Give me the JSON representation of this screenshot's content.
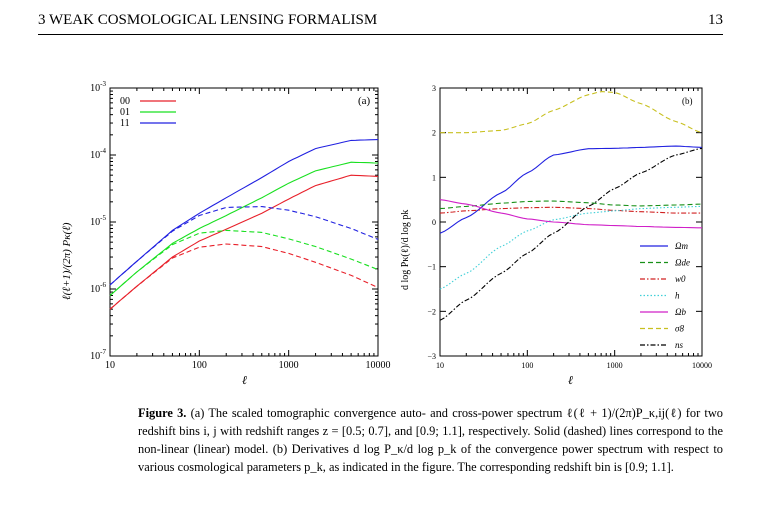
{
  "header": {
    "section": "3 WEAK COSMOLOGICAL LENSING FORMALISM",
    "page": "13"
  },
  "caption": {
    "label": "Figure 3.",
    "text": "(a) The scaled tomographic convergence auto- and cross-power spectrum ℓ(ℓ + 1)/(2π)P_κ,ij(ℓ) for two redshift bins i, j with redshift ranges z = [0.5; 0.7], and [0.9; 1.1], respectively. Solid (dashed) lines correspond to the non-linear (linear) model. (b) Derivatives d log P_κ/d log p_k of the convergence power spectrum with respect to various cosmological parameters p_k, as indicated in the figure. The corresponding redshift bin is [0.9; 1.1]."
  },
  "colors": {
    "red": "#e8202a",
    "green": "#19e020",
    "blue": "#2020e0",
    "magenta": "#d020c8",
    "cyan": "#40d0d8",
    "olive": "#c8c020",
    "darkgreen": "#189018",
    "darkred": "#d02020"
  },
  "chart_data": [
    {
      "type": "line",
      "panel_label": "(a)",
      "xlabel": "ℓ",
      "ylabel": "ℓ(ℓ+1)/(2π) Pκ(ℓ)",
      "xscale": "log",
      "yscale": "log",
      "xlim": [
        10,
        10000
      ],
      "ylim": [
        1e-07,
        0.001
      ],
      "xticklabels": [
        "10",
        "100",
        "1000",
        "10000"
      ],
      "yticklabels": [
        "10-7",
        "10-6",
        "10-5",
        "10-4",
        "10-3"
      ],
      "legend": {
        "position": "top-left",
        "entries": [
          "00",
          "01",
          "11"
        ]
      },
      "series": [
        {
          "name": "11",
          "model": "non-linear",
          "style": "solid",
          "color": "#2020e0",
          "x": [
            10,
            20,
            50,
            100,
            200,
            500,
            1000,
            2000,
            5000,
            10000
          ],
          "y": [
            1.15e-06,
            2.6e-06,
            7.5e-06,
            1.35e-05,
            2.3e-05,
            4.6e-05,
            8e-05,
            0.000125,
            0.000165,
            0.00017
          ]
        },
        {
          "name": "01",
          "model": "non-linear",
          "style": "solid",
          "color": "#19e020",
          "x": [
            10,
            20,
            50,
            100,
            200,
            500,
            1000,
            2000,
            5000,
            10000
          ],
          "y": [
            8e-07,
            1.8e-06,
            4.8e-06,
            8e-06,
            1.25e-05,
            2.3e-05,
            3.8e-05,
            5.8e-05,
            7.8e-05,
            7.6e-05
          ]
        },
        {
          "name": "00",
          "model": "non-linear",
          "style": "solid",
          "color": "#e8202a",
          "x": [
            10,
            20,
            50,
            100,
            200,
            500,
            1000,
            2000,
            5000,
            10000
          ],
          "y": [
            5e-07,
            1.1e-06,
            3e-06,
            5.2e-06,
            7.8e-06,
            1.35e-05,
            2.2e-05,
            3.5e-05,
            5e-05,
            4.8e-05
          ]
        },
        {
          "name": "11",
          "model": "linear",
          "style": "dashed",
          "color": "#2020e0",
          "x": [
            10,
            20,
            50,
            100,
            200,
            500,
            1000,
            2000,
            5000,
            10000
          ],
          "y": [
            1.15e-06,
            2.6e-06,
            7.3e-06,
            1.25e-05,
            1.65e-05,
            1.7e-05,
            1.5e-05,
            1.2e-05,
            8e-06,
            5.5e-06
          ]
        },
        {
          "name": "01",
          "model": "linear",
          "style": "dashed",
          "color": "#19e020",
          "x": [
            10,
            20,
            50,
            100,
            200,
            500,
            1000,
            2000,
            5000,
            10000
          ],
          "y": [
            8e-07,
            1.8e-06,
            4.6e-06,
            6.8e-06,
            7.5e-06,
            7e-06,
            5.6e-06,
            4.3e-06,
            2.8e-06,
            1.95e-06
          ]
        },
        {
          "name": "00",
          "model": "linear",
          "style": "dashed",
          "color": "#e8202a",
          "x": [
            10,
            20,
            50,
            100,
            200,
            500,
            1000,
            2000,
            5000,
            10000
          ],
          "y": [
            5e-07,
            1.1e-06,
            2.9e-06,
            4.2e-06,
            4.7e-06,
            4.3e-06,
            3.4e-06,
            2.5e-06,
            1.6e-06,
            1.05e-06
          ]
        }
      ]
    },
    {
      "type": "line",
      "panel_label": "(b)",
      "xlabel": "ℓ",
      "ylabel": "d log Pκ(ℓ)/d log pk",
      "xscale": "log",
      "yscale": "linear",
      "xlim": [
        10,
        10000
      ],
      "ylim": [
        -3,
        3
      ],
      "xticklabels": [
        "10",
        "100",
        "1000",
        "10000"
      ],
      "yticklabels": [
        "−3",
        "−2",
        "−1",
        "0",
        "1",
        "2",
        "3"
      ],
      "legend": {
        "position": "bottom-right",
        "entries": [
          "Ωm",
          "Ωde",
          "w0",
          "h",
          "Ωb",
          "σ8",
          "ns"
        ]
      },
      "series": [
        {
          "name": "Ωm",
          "style": "solid",
          "color": "#2020e0",
          "x": [
            10,
            20,
            50,
            100,
            200,
            500,
            1000,
            2000,
            5000,
            10000
          ],
          "y": [
            -0.25,
            0.1,
            0.65,
            1.1,
            1.5,
            1.64,
            1.65,
            1.67,
            1.7,
            1.67
          ]
        },
        {
          "name": "Ωde",
          "style": "dashed",
          "color": "#189018",
          "x": [
            10,
            20,
            50,
            100,
            200,
            500,
            1000,
            2000,
            5000,
            10000
          ],
          "y": [
            0.3,
            0.35,
            0.42,
            0.46,
            0.47,
            0.43,
            0.38,
            0.36,
            0.38,
            0.4
          ]
        },
        {
          "name": "w0",
          "style": "dash-dot",
          "color": "#d02020",
          "x": [
            10,
            20,
            50,
            100,
            200,
            500,
            1000,
            2000,
            5000,
            10000
          ],
          "y": [
            0.2,
            0.25,
            0.3,
            0.32,
            0.33,
            0.3,
            0.26,
            0.23,
            0.2,
            0.2
          ]
        },
        {
          "name": "h",
          "style": "dotted",
          "color": "#40d0d8",
          "x": [
            10,
            20,
            50,
            100,
            200,
            500,
            1000,
            2000,
            5000,
            10000
          ],
          "y": [
            -1.5,
            -1.15,
            -0.55,
            -0.2,
            0.05,
            0.2,
            0.25,
            0.3,
            0.33,
            0.35
          ]
        },
        {
          "name": "Ωb",
          "style": "solid",
          "color": "#d020c8",
          "x": [
            10,
            20,
            50,
            100,
            200,
            500,
            1000,
            2000,
            5000,
            10000
          ],
          "y": [
            0.5,
            0.4,
            0.2,
            0.07,
            0.0,
            -0.06,
            -0.08,
            -0.1,
            -0.12,
            -0.13
          ]
        },
        {
          "name": "σ8",
          "style": "dashed",
          "color": "#c8c020",
          "x": [
            10,
            20,
            50,
            100,
            200,
            500,
            700,
            1000,
            2000,
            5000,
            10000
          ],
          "y": [
            2.0,
            2.0,
            2.05,
            2.2,
            2.5,
            2.85,
            2.92,
            2.9,
            2.65,
            2.25,
            2.0
          ]
        },
        {
          "name": "ns",
          "style": "dash-dot",
          "color": "#000000",
          "x": [
            10,
            20,
            50,
            100,
            200,
            500,
            1000,
            2000,
            5000,
            10000
          ],
          "y": [
            -2.2,
            -1.75,
            -1.15,
            -0.7,
            -0.25,
            0.35,
            0.75,
            1.1,
            1.5,
            1.65
          ]
        }
      ]
    }
  ]
}
